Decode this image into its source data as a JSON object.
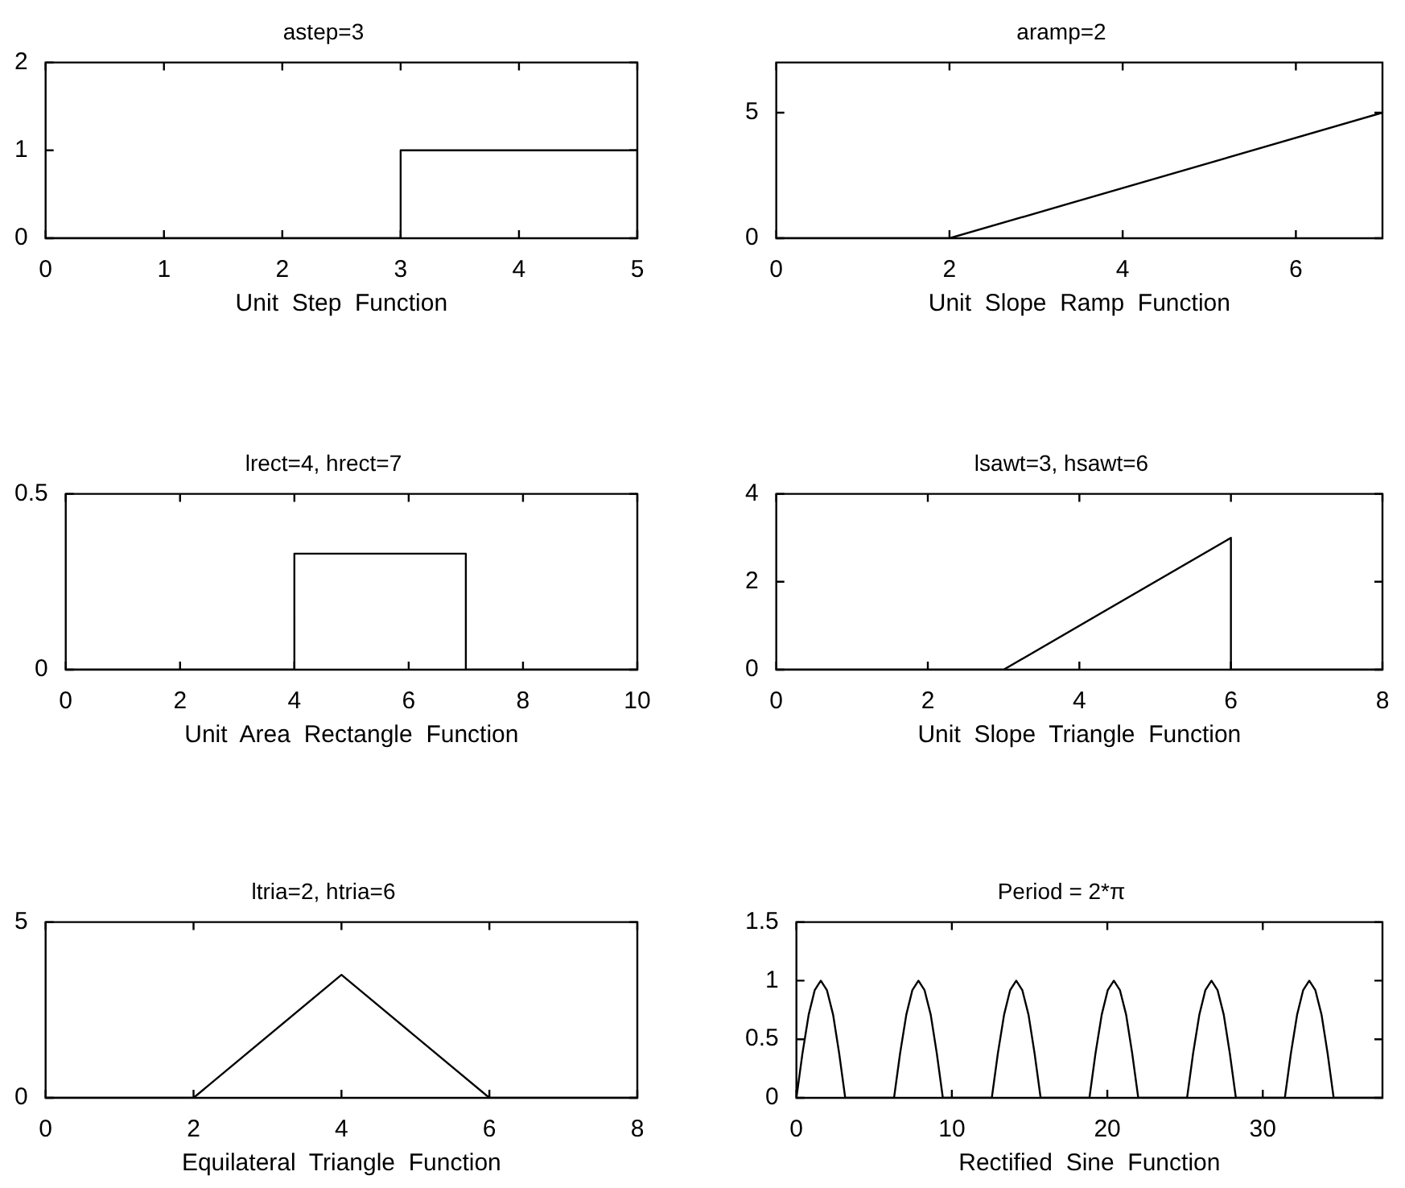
{
  "chart_data": [
    {
      "type": "line",
      "title": "astep=3",
      "xlabel": "Unit  Step  Function",
      "color": "#000000",
      "x": [
        0,
        3,
        3,
        5,
        5
      ],
      "values": [
        0,
        0,
        1,
        1,
        0
      ],
      "xlim": [
        0,
        5
      ],
      "xticks": [
        0,
        1,
        2,
        3,
        4,
        5
      ],
      "ylim": [
        0,
        2
      ],
      "yticks": [
        0,
        1,
        2
      ]
    },
    {
      "type": "line",
      "title": "aramp=2",
      "xlabel": "Unit  Slope  Ramp  Function",
      "color": "#000000",
      "x": [
        0,
        2,
        7
      ],
      "values": [
        0,
        0,
        5
      ],
      "xlim": [
        0,
        7
      ],
      "xticks": [
        0,
        2,
        4,
        6
      ],
      "ylim": [
        0,
        7
      ],
      "yticks": [
        0,
        5
      ]
    },
    {
      "type": "line",
      "title": "lrect=4, hrect=7",
      "xlabel": "Unit  Area  Rectangle  Function",
      "color": "#000000",
      "x": [
        0,
        4,
        4,
        7,
        7,
        10
      ],
      "values": [
        0,
        0,
        0.33,
        0.33,
        0,
        0
      ],
      "xlim": [
        0,
        10
      ],
      "xticks": [
        0,
        2,
        4,
        6,
        8,
        10
      ],
      "ylim": [
        0,
        0.5
      ],
      "yticks": [
        0,
        0.5
      ]
    },
    {
      "type": "line",
      "title": "lsawt=3, hsawt=6",
      "xlabel": "Unit  Slope  Triangle  Function",
      "color": "#000000",
      "x": [
        0,
        3,
        6,
        6,
        8
      ],
      "values": [
        0,
        0,
        3,
        0,
        0
      ],
      "xlim": [
        0,
        8
      ],
      "xticks": [
        0,
        2,
        4,
        6,
        8
      ],
      "ylim": [
        0,
        4
      ],
      "yticks": [
        0,
        2,
        4
      ]
    },
    {
      "type": "line",
      "title": "ltria=2, htria=6",
      "xlabel": "Equilateral  Triangle  Function",
      "color": "#000000",
      "x": [
        0,
        2,
        4,
        6,
        8
      ],
      "values": [
        0,
        0,
        3.5,
        0,
        0
      ],
      "xlim": [
        0,
        8
      ],
      "xticks": [
        0,
        2,
        4,
        6,
        8
      ],
      "ylim": [
        0,
        5
      ],
      "yticks": [
        0,
        5
      ]
    },
    {
      "type": "line",
      "title": "Period = 2*π",
      "xlabel": "Rectified  Sine  Function",
      "color": "#000000",
      "x": [
        0,
        0.39,
        0.79,
        1.18,
        1.57,
        1.96,
        2.36,
        2.75,
        3.14,
        6.28,
        6.67,
        7.07,
        7.46,
        7.85,
        8.24,
        8.64,
        9.03,
        9.42,
        12.57,
        12.96,
        13.36,
        13.75,
        14.14,
        14.53,
        14.93,
        15.32,
        15.71,
        18.85,
        19.24,
        19.64,
        20.03,
        20.42,
        20.81,
        21.21,
        21.6,
        21.99,
        25.13,
        25.52,
        25.92,
        26.31,
        26.7,
        27.09,
        27.49,
        27.88,
        28.27,
        31.42,
        31.81,
        32.21,
        32.6,
        32.99,
        33.38,
        33.78,
        34.17,
        34.56,
        37.7
      ],
      "values": [
        0,
        0.38,
        0.71,
        0.92,
        1,
        0.92,
        0.71,
        0.38,
        0,
        0,
        0.38,
        0.71,
        0.92,
        1,
        0.92,
        0.71,
        0.38,
        0,
        0,
        0.38,
        0.71,
        0.92,
        1,
        0.92,
        0.71,
        0.38,
        0,
        0,
        0.38,
        0.71,
        0.92,
        1,
        0.92,
        0.71,
        0.38,
        0,
        0,
        0.38,
        0.71,
        0.92,
        1,
        0.92,
        0.71,
        0.38,
        0,
        0,
        0.38,
        0.71,
        0.92,
        1,
        0.92,
        0.71,
        0.38,
        0,
        0
      ],
      "xlim": [
        0,
        37.7
      ],
      "xticks": [
        0,
        10,
        20,
        30
      ],
      "ylim": [
        0,
        1.5
      ],
      "yticks": [
        0,
        0.5,
        1,
        1.5
      ]
    }
  ]
}
